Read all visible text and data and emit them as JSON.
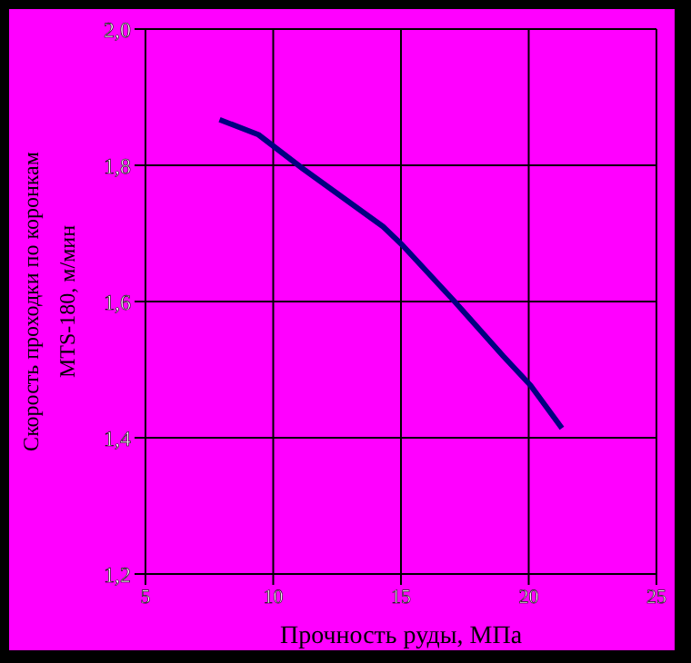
{
  "chart_data": {
    "type": "line",
    "xlabel": "Прочность руды, МПа",
    "ylabel": "Скорость проходки по коронкам\nМТS-180, м/мин",
    "x": [
      7.9,
      9.42,
      11.16,
      14.3,
      15.05,
      17.1,
      19.0,
      20.07,
      21.3
    ],
    "series": [
      {
        "color": "#000080",
        "values": [
          1.867,
          1.845,
          1.795,
          1.71,
          1.683,
          1.6,
          1.52,
          1.477,
          1.414
        ]
      }
    ],
    "xlim": [
      5,
      25
    ],
    "xticks": [
      5,
      10,
      15,
      20,
      25
    ],
    "ylim": [
      1.2,
      2.0
    ],
    "yticks": [
      {
        "value": 1.2,
        "label": "1,2"
      },
      {
        "value": 1.4,
        "label": "1,4"
      },
      {
        "value": 1.6,
        "label": "1,6"
      },
      {
        "value": 1.8,
        "label": "1,8"
      },
      {
        "value": 2.0,
        "label": "2,0"
      }
    ],
    "grid": true,
    "marker": "none",
    "line_style": "solid"
  }
}
